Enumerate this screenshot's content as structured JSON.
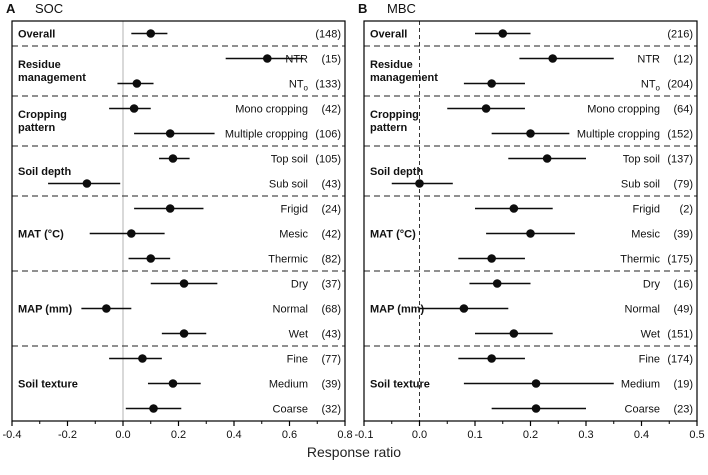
{
  "colors": {
    "marker": "#0d0d0d",
    "error_bar": "#0d0d0d",
    "frame": "#000000",
    "separator": "#222222",
    "zero_line_gray": "#b3b3b3",
    "zero_line_dark": "#333333",
    "text": "#111111"
  },
  "chart_data": [
    {
      "type": "scatter",
      "subtype": "forest-plot",
      "panel_letter": "A",
      "title": "SOC",
      "xlabel": "Response ratio",
      "xlim": [
        -0.4,
        0.8
      ],
      "xtick_labels": [
        "-0.4",
        "-0.2",
        "0.0",
        "0.2",
        "0.4",
        "0.6",
        "0.8"
      ],
      "zero_line": 0.0,
      "zero_line_style": "solid",
      "legend": "none",
      "grid": false,
      "groups": [
        {
          "category_lines": [
            "Overall"
          ],
          "rows": [
            {
              "label": "",
              "n": 148,
              "mean": 0.1,
              "lo": 0.03,
              "hi": 0.16
            }
          ]
        },
        {
          "category_lines": [
            "Residue",
            "management"
          ],
          "rows": [
            {
              "label": "NTR",
              "n": 15,
              "mean": 0.52,
              "lo": 0.37,
              "hi": 0.65
            },
            {
              "label": "NT_o",
              "n": 133,
              "mean": 0.05,
              "lo": -0.02,
              "hi": 0.11
            }
          ]
        },
        {
          "category_lines": [
            "Cropping",
            "pattern"
          ],
          "rows": [
            {
              "label": "Mono cropping",
              "n": 42,
              "mean": 0.04,
              "lo": -0.05,
              "hi": 0.1
            },
            {
              "label": "Multiple cropping",
              "n": 106,
              "mean": 0.17,
              "lo": 0.04,
              "hi": 0.33
            }
          ]
        },
        {
          "category_lines": [
            "Soil depth"
          ],
          "rows": [
            {
              "label": "Top soil",
              "n": 105,
              "mean": 0.18,
              "lo": 0.13,
              "hi": 0.24
            },
            {
              "label": "Sub soil",
              "n": 43,
              "mean": -0.13,
              "lo": -0.27,
              "hi": -0.01
            }
          ]
        },
        {
          "category_lines": [
            "MAT (°C)"
          ],
          "rows": [
            {
              "label": "Frigid",
              "n": 24,
              "mean": 0.17,
              "lo": 0.04,
              "hi": 0.29
            },
            {
              "label": "Mesic",
              "n": 42,
              "mean": 0.03,
              "lo": -0.12,
              "hi": 0.15
            },
            {
              "label": "Thermic",
              "n": 82,
              "mean": 0.1,
              "lo": 0.02,
              "hi": 0.17
            }
          ]
        },
        {
          "category_lines": [
            "MAP (mm)"
          ],
          "rows": [
            {
              "label": "Dry",
              "n": 37,
              "mean": 0.22,
              "lo": 0.1,
              "hi": 0.34
            },
            {
              "label": "Normal",
              "n": 68,
              "mean": -0.06,
              "lo": -0.15,
              "hi": 0.03
            },
            {
              "label": "Wet",
              "n": 43,
              "mean": 0.22,
              "lo": 0.14,
              "hi": 0.3
            }
          ]
        },
        {
          "category_lines": [
            "Soil texture"
          ],
          "rows": [
            {
              "label": "Fine",
              "n": 77,
              "mean": 0.07,
              "lo": -0.05,
              "hi": 0.14
            },
            {
              "label": "Medium",
              "n": 39,
              "mean": 0.18,
              "lo": 0.09,
              "hi": 0.28
            },
            {
              "label": "Coarse",
              "n": 32,
              "mean": 0.11,
              "lo": 0.01,
              "hi": 0.21
            }
          ]
        }
      ]
    },
    {
      "type": "scatter",
      "subtype": "forest-plot",
      "panel_letter": "B",
      "title": "MBC",
      "xlabel": "Response ratio",
      "xlim": [
        -0.1,
        0.5
      ],
      "xtick_labels": [
        "-0.1",
        "0.0",
        "0.1",
        "0.2",
        "0.3",
        "0.4",
        "0.5"
      ],
      "zero_line": 0.0,
      "zero_line_style": "dashed",
      "legend": "none",
      "grid": false,
      "groups": [
        {
          "category_lines": [
            "Overall"
          ],
          "rows": [
            {
              "label": "",
              "n": 216,
              "mean": 0.15,
              "lo": 0.1,
              "hi": 0.2
            }
          ]
        },
        {
          "category_lines": [
            "Residue",
            "management"
          ],
          "rows": [
            {
              "label": "NTR",
              "n": 12,
              "mean": 0.24,
              "lo": 0.18,
              "hi": 0.35
            },
            {
              "label": "NT_o",
              "n": 204,
              "mean": 0.13,
              "lo": 0.08,
              "hi": 0.19
            }
          ]
        },
        {
          "category_lines": [
            "Cropping",
            "pattern"
          ],
          "rows": [
            {
              "label": "Mono cropping",
              "n": 64,
              "mean": 0.12,
              "lo": 0.05,
              "hi": 0.19
            },
            {
              "label": "Multiple cropping",
              "n": 152,
              "mean": 0.2,
              "lo": 0.13,
              "hi": 0.27
            }
          ]
        },
        {
          "category_lines": [
            "Soil depth"
          ],
          "rows": [
            {
              "label": "Top soil",
              "n": 137,
              "mean": 0.23,
              "lo": 0.16,
              "hi": 0.3
            },
            {
              "label": "Sub soil",
              "n": 79,
              "mean": 0.0,
              "lo": -0.05,
              "hi": 0.06
            }
          ]
        },
        {
          "category_lines": [
            "MAT (°C)"
          ],
          "rows": [
            {
              "label": "Frigid",
              "n": 2,
              "mean": 0.17,
              "lo": 0.1,
              "hi": 0.24
            },
            {
              "label": "Mesic",
              "n": 39,
              "mean": 0.2,
              "lo": 0.12,
              "hi": 0.28
            },
            {
              "label": "Thermic",
              "n": 175,
              "mean": 0.13,
              "lo": 0.07,
              "hi": 0.19
            }
          ]
        },
        {
          "category_lines": [
            "MAP (mm)"
          ],
          "rows": [
            {
              "label": "Dry",
              "n": 16,
              "mean": 0.14,
              "lo": 0.09,
              "hi": 0.2
            },
            {
              "label": "Normal",
              "n": 49,
              "mean": 0.08,
              "lo": 0.0,
              "hi": 0.16
            },
            {
              "label": "Wet",
              "n": 151,
              "mean": 0.17,
              "lo": 0.1,
              "hi": 0.24
            }
          ]
        },
        {
          "category_lines": [
            "Soil texture"
          ],
          "rows": [
            {
              "label": "Fine",
              "n": 174,
              "mean": 0.13,
              "lo": 0.07,
              "hi": 0.19
            },
            {
              "label": "Medium",
              "n": 19,
              "mean": 0.21,
              "lo": 0.08,
              "hi": 0.35
            },
            {
              "label": "Coarse",
              "n": 23,
              "mean": 0.21,
              "lo": 0.13,
              "hi": 0.3
            }
          ]
        }
      ]
    }
  ]
}
